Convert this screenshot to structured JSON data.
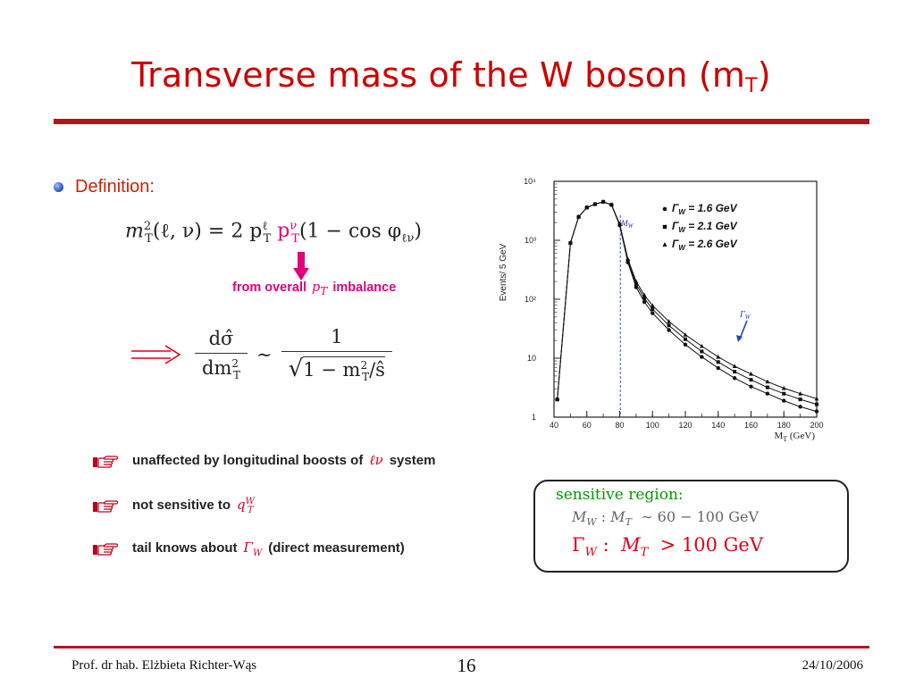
{
  "slide": {
    "title": "Transverse mass of the W boson (m",
    "title_sub": "T",
    "title_close": ")",
    "accent_color": "#cc0000"
  },
  "definition": {
    "label": "Definition:",
    "formula_mt_lhs": "m",
    "formula_mt_args": "(ℓ, ν) = 2 p",
    "formula_mt_mid": " p",
    "formula_mt_tail": "(1 − cos φ",
    "formula_mt_close": ")",
    "sup_2": "2",
    "sub_T": "T",
    "sup_l": "ℓ",
    "sup_nu": "ν",
    "sub_lnu": "ℓν",
    "note_prefix": "from overall",
    "note_symbol": "p",
    "note_symbol_sub": "T",
    "note_suffix": "imbalance"
  },
  "proportionality": {
    "num": "dσ̂",
    "den": "dm",
    "den_sup": "2",
    "den_sub": "T",
    "sim": "∼",
    "rhs_num": "1",
    "rhs_den": "1 − m",
    "rhs_den_sup": "2",
    "rhs_den_sub": "T",
    "rhs_den_tail": "/ŝ"
  },
  "bullets": [
    {
      "text_before": "unaffected by longitudinal boosts of",
      "symbol": "ℓν",
      "text_after": "system"
    },
    {
      "text_before": "not sensitive to",
      "symbol": "q",
      "symbol_sup": "W",
      "symbol_sub": "T",
      "text_after": ""
    },
    {
      "text_before": "tail knows about",
      "symbol": "Γ",
      "symbol_sub": "W",
      "text_after": "(direct measurement)"
    }
  ],
  "chart_data": {
    "type": "scatter",
    "xlabel": "M",
    "xlabel_sub": "T",
    "xlabel_unit": "(GeV)",
    "ylabel": "Events/ 5 GeV",
    "xlim": [
      40,
      200
    ],
    "ylog": true,
    "ylim_decades": [
      0,
      4
    ],
    "x_ticks": [
      40,
      60,
      80,
      100,
      120,
      140,
      160,
      180,
      200
    ],
    "y_ticks": [
      "1",
      "10",
      "10²",
      "10³",
      "10⁴"
    ],
    "mw_label": "M",
    "mw_label_sub": "W",
    "mw_x": 80.4,
    "gamma_annotation": "Γ",
    "gamma_annotation_sub": "W",
    "legend_position": "top-right",
    "series": [
      {
        "name": "Γ_W = 1.6 GeV",
        "label_main": "Γ",
        "label_sub": "W",
        "label_val": " = 1.6 GeV",
        "marker": "circle",
        "x": [
          42,
          50,
          55,
          60,
          65,
          70,
          75,
          80,
          85,
          90,
          95,
          100,
          110,
          120,
          130,
          140,
          150,
          160,
          170,
          180,
          190,
          200
        ],
        "y": [
          2,
          900,
          2500,
          3600,
          4100,
          4500,
          4000,
          1800,
          420,
          160,
          90,
          58,
          30,
          17,
          10.5,
          6.8,
          4.6,
          3.3,
          2.5,
          1.9,
          1.5,
          1.25
        ]
      },
      {
        "name": "Γ_W = 2.1 GeV",
        "label_main": "Γ",
        "label_sub": "W",
        "label_val": " = 2.1 GeV",
        "marker": "square",
        "x": [
          42,
          50,
          55,
          60,
          65,
          70,
          75,
          80,
          85,
          90,
          95,
          100,
          110,
          120,
          130,
          140,
          150,
          160,
          170,
          180,
          190,
          200
        ],
        "y": [
          2,
          900,
          2500,
          3600,
          4100,
          4500,
          4000,
          1850,
          450,
          180,
          104,
          68,
          36,
          21,
          13,
          8.6,
          5.9,
          4.3,
          3.2,
          2.5,
          2.0,
          1.65
        ]
      },
      {
        "name": "Γ_W = 2.6 GeV",
        "label_main": "Γ",
        "label_sub": "W",
        "label_val": " = 2.6 GeV",
        "marker": "triangle",
        "x": [
          42,
          50,
          55,
          60,
          65,
          70,
          75,
          80,
          85,
          90,
          95,
          100,
          110,
          120,
          130,
          140,
          150,
          160,
          170,
          180,
          190,
          200
        ],
        "y": [
          2,
          900,
          2500,
          3600,
          4100,
          4500,
          4000,
          1900,
          480,
          200,
          118,
          78,
          42,
          25,
          16,
          10.5,
          7.3,
          5.4,
          4.0,
          3.1,
          2.5,
          2.05
        ]
      }
    ]
  },
  "sensitive_region": {
    "heading": "sensitive region:",
    "row1_param": "M",
    "row1_param_sub": "W",
    "row1_colon": ":",
    "row1_var": "M",
    "row1_var_sub": "T",
    "row1_range": "∼ 60 − 100 GeV",
    "row2_param": "Γ",
    "row2_param_sub": "W",
    "row2_colon": ":",
    "row2_var": "M",
    "row2_var_sub": "T",
    "row2_range": "> 100 GeV"
  },
  "footer": {
    "author": "Prof. dr hab. Elżbieta Richter-Wąs",
    "page": "16",
    "date": "24/10/2006"
  }
}
